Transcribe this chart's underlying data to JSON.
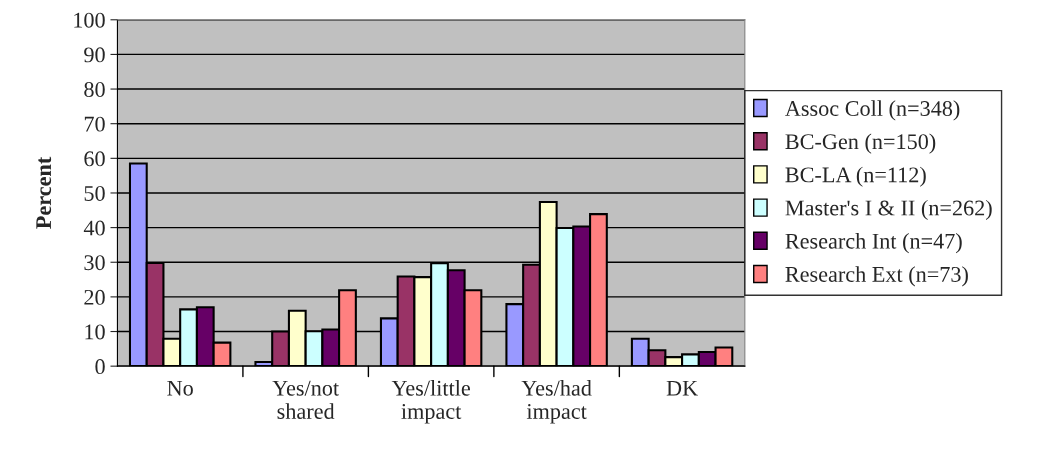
{
  "chart_data": {
    "type": "bar",
    "ylabel": "Percent",
    "categories": [
      "No",
      "Yes/not\nshared",
      "Yes/little\nimpact",
      "Yes/had\nimpact",
      "DK"
    ],
    "series": [
      {
        "name": "Assoc Coll (n=348)",
        "color": "#9999ff",
        "values": [
          58.5,
          1.2,
          13.8,
          17.9,
          7.9
        ]
      },
      {
        "name": "BC-Gen (n=150)",
        "color": "#993366",
        "values": [
          29.8,
          10.0,
          25.9,
          29.3,
          4.6
        ]
      },
      {
        "name": "BC-LA (n=112)",
        "color": "#ffffcc",
        "values": [
          7.9,
          16.0,
          25.7,
          47.4,
          2.6
        ]
      },
      {
        "name": "Master's I & II (n=262)",
        "color": "#ccffff",
        "values": [
          16.4,
          10.1,
          29.7,
          39.9,
          3.4
        ]
      },
      {
        "name": "Research Int (n=47)",
        "color": "#660066",
        "values": [
          17.0,
          10.6,
          27.7,
          40.3,
          4.1
        ]
      },
      {
        "name": "Research Ext (n=73)",
        "color": "#ff8080",
        "values": [
          6.8,
          21.9,
          21.9,
          43.9,
          5.4
        ]
      }
    ],
    "ylim": [
      0,
      100
    ],
    "yticks": [
      0,
      10,
      20,
      30,
      40,
      50,
      60,
      70,
      80,
      90,
      100
    ],
    "grid": "y",
    "legend": "right"
  }
}
